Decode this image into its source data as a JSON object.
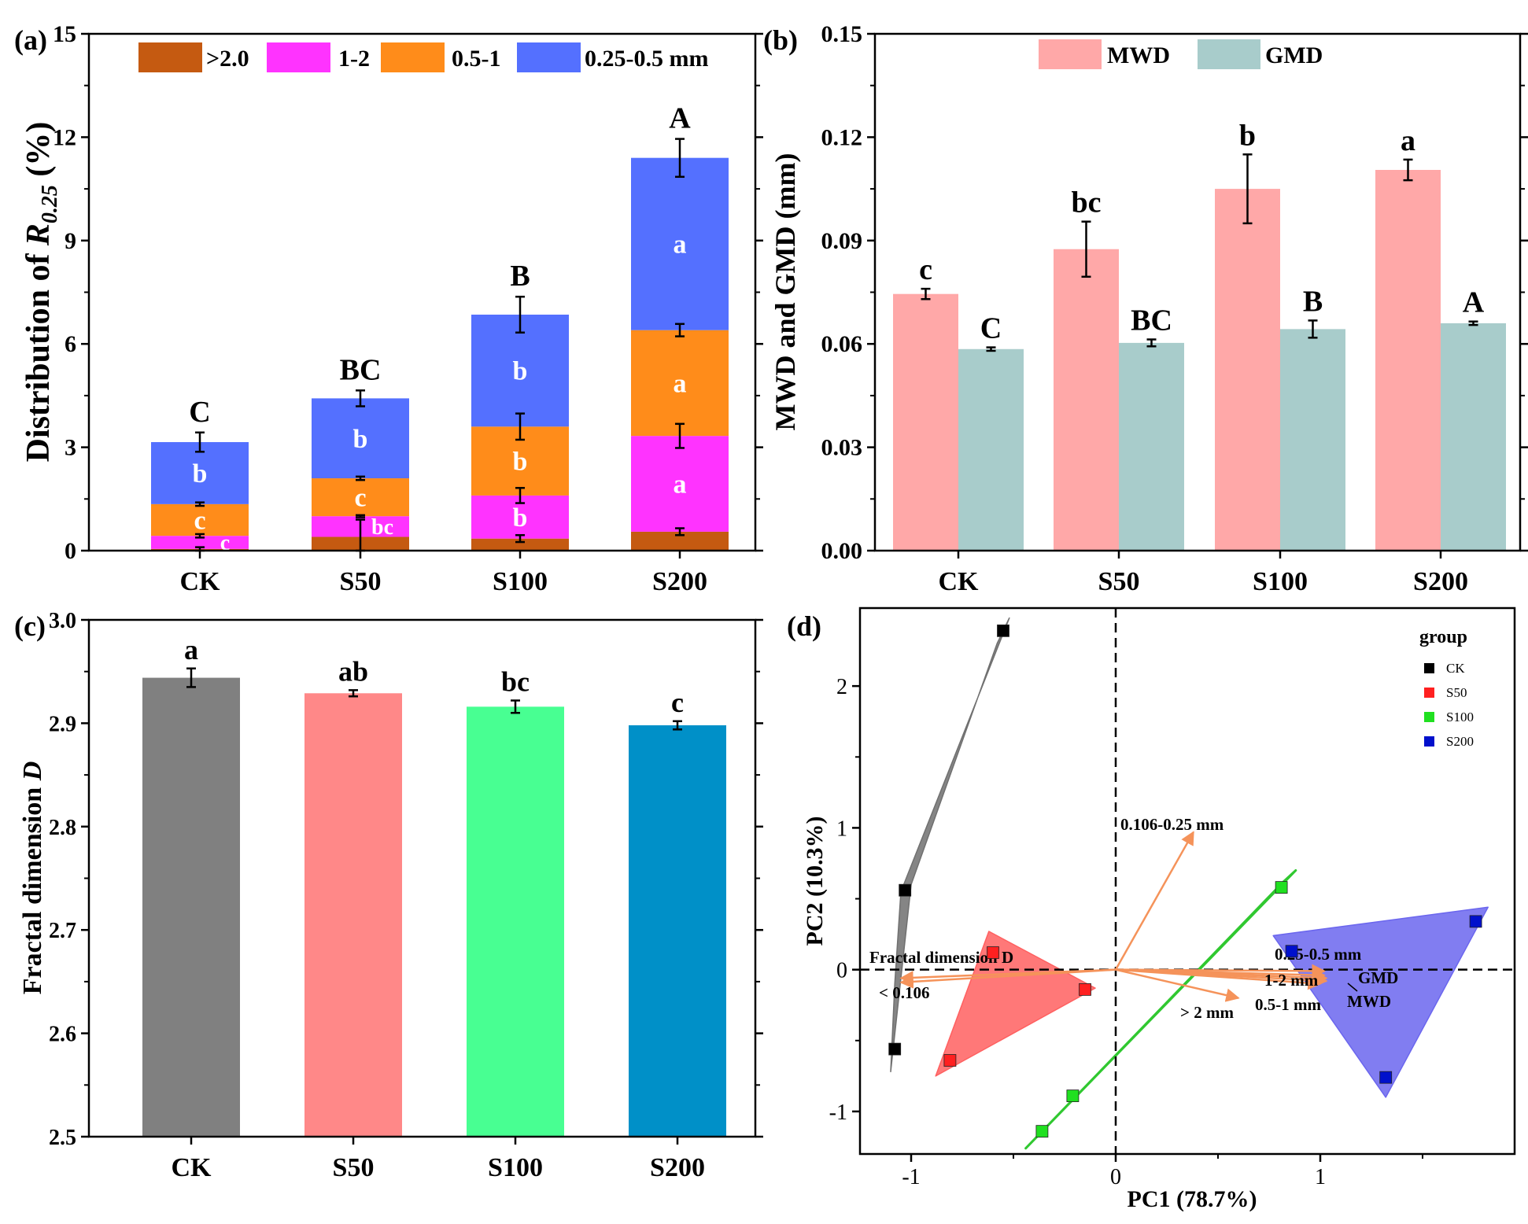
{
  "figure": {
    "panels": [
      "(a)",
      "(b)",
      "(c)",
      "(d)"
    ]
  },
  "colors": {
    "gt2": "#c55a11",
    "p1_2": "#ff33ff",
    "p05_1": "#ff8c1a",
    "p025_05": "#5470ff",
    "MWD": "#ffa8a8",
    "GMD": "#a8cccb",
    "CK_bar": "#808080",
    "S50_bar": "#ff8888",
    "S100_bar": "#48ff92",
    "S200_bar": "#0090c8",
    "CK": "#000000",
    "S50": "#ff2020",
    "S100": "#20e020",
    "S200": "#0010cc",
    "hullCK": "#707070",
    "hullS50": "#ff6060",
    "hullS100": "#30c830",
    "hullS200": "#6b66ee",
    "arrow": "#f5935a"
  },
  "chart_data": [
    {
      "panel": "(a)",
      "type": "bar",
      "stacked": true,
      "categories": [
        "CK",
        "S50",
        "S100",
        "S200"
      ],
      "ylabel_main": "Distribution of ",
      "ylabel_var": "R",
      "ylabel_sub": "0.25",
      "ylabel_unit": " (%)",
      "ylim": [
        0,
        15
      ],
      "yticks": [
        "0",
        "3",
        "6",
        "9",
        "12",
        "15"
      ],
      "ytick_values": [
        0,
        3,
        6,
        9,
        12,
        15
      ],
      "series": [
        {
          "name": ">2.0",
          "color_key": "gt2",
          "values": [
            0.05,
            0.4,
            0.35,
            0.55
          ],
          "errors": [
            0.05,
            0.5,
            0.1,
            0.1
          ],
          "letters": [
            "",
            "",
            "",
            ""
          ]
        },
        {
          "name": "1-2",
          "color_key": "p1_2",
          "values": [
            0.38,
            0.6,
            1.25,
            2.78
          ],
          "errors": [
            0.05,
            0.03,
            0.22,
            0.35
          ],
          "letters": [
            "c",
            "bc",
            "b",
            "a"
          ]
        },
        {
          "name": "0.5-1",
          "color_key": "p05_1",
          "values": [
            0.92,
            1.1,
            2.0,
            3.07
          ],
          "errors": [
            0.05,
            0.05,
            0.38,
            0.18
          ],
          "letters": [
            "c",
            "c",
            "b",
            "a"
          ]
        },
        {
          "name": "0.25-0.5  mm",
          "color_key": "p025_05",
          "values": [
            1.8,
            2.32,
            3.25,
            5.0
          ],
          "errors": [
            0.28,
            0.23,
            0.52,
            0.55
          ],
          "letters": [
            "b",
            "b",
            "b",
            "a"
          ]
        }
      ],
      "totals": [
        3.15,
        4.42,
        6.85,
        11.4
      ],
      "total_letters": [
        "C",
        "BC",
        "B",
        "A"
      ]
    },
    {
      "panel": "(b)",
      "type": "bar",
      "categories": [
        "CK",
        "S50",
        "S100",
        "S200"
      ],
      "ylabel": "MWD and GMD (mm)",
      "ylim": [
        0,
        0.15
      ],
      "yticks": [
        "0.00",
        "0.03",
        "0.06",
        "0.09",
        "0.12",
        "0.15"
      ],
      "ytick_values": [
        0,
        0.03,
        0.06,
        0.09,
        0.12,
        0.15
      ],
      "series": [
        {
          "name": "MWD",
          "color_key": "MWD",
          "values": [
            0.0745,
            0.0875,
            0.105,
            0.1105
          ],
          "errors": [
            0.0015,
            0.008,
            0.01,
            0.003
          ],
          "letters": [
            "c",
            "bc",
            "b",
            "a"
          ]
        },
        {
          "name": "GMD",
          "color_key": "GMD",
          "values": [
            0.0585,
            0.0603,
            0.0643,
            0.066
          ],
          "errors": [
            0.0005,
            0.001,
            0.0025,
            0.0005
          ],
          "letters": [
            "C",
            "BC",
            "B",
            "A"
          ]
        }
      ]
    },
    {
      "panel": "(c)",
      "type": "bar",
      "categories": [
        "CK",
        "S50",
        "S100",
        "S200"
      ],
      "ylabel_main": "Fractal dimension ",
      "ylabel_var": "D",
      "ylim": [
        2.5,
        3.0
      ],
      "yticks": [
        "2.5",
        "2.6",
        "2.7",
        "2.8",
        "2.9",
        "3.0"
      ],
      "ytick_values": [
        2.5,
        2.6,
        2.7,
        2.8,
        2.9,
        3.0
      ],
      "values": [
        2.944,
        2.929,
        2.916,
        2.898
      ],
      "errors": [
        0.009,
        0.003,
        0.006,
        0.004
      ],
      "letters": [
        "a",
        "ab",
        "bc",
        "c"
      ],
      "color_keys": [
        "CK_bar",
        "S50_bar",
        "S100_bar",
        "S200_bar"
      ]
    },
    {
      "panel": "(d)",
      "type": "scatter",
      "xlabel": "PC1 (78.7%)",
      "ylabel": "PC2 (10.3%)",
      "xlim": [
        -1.25,
        1.95
      ],
      "ylim": [
        -1.3,
        2.55
      ],
      "xticks": [
        "-1",
        "0",
        "1"
      ],
      "xtick_values": [
        -1,
        0,
        1
      ],
      "yticks": [
        "-1",
        "0",
        "1",
        "2"
      ],
      "ytick_values": [
        -1,
        0,
        1,
        2
      ],
      "legend_title": "group",
      "groups": [
        {
          "name": "CK",
          "color_key": "CK",
          "hull_key": "hullCK",
          "points": [
            [
              -0.55,
              2.39
            ],
            [
              -1.03,
              0.56
            ],
            [
              -1.08,
              -0.56
            ]
          ],
          "hull": [
            [
              -0.52,
              2.48
            ],
            [
              -0.58,
              2.3
            ],
            [
              -1.0,
              0.6
            ],
            [
              -1.1,
              -0.72
            ],
            [
              -1.08,
              -0.1
            ],
            [
              -1.05,
              0.55
            ]
          ]
        },
        {
          "name": "S50",
          "color_key": "S50",
          "hull_key": "hullS50",
          "points": [
            [
              -0.6,
              0.12
            ],
            [
              -0.81,
              -0.64
            ],
            [
              -0.15,
              -0.14
            ]
          ],
          "hull": [
            [
              -0.62,
              0.27
            ],
            [
              -0.1,
              -0.13
            ],
            [
              -0.88,
              -0.75
            ]
          ]
        },
        {
          "name": "S100",
          "color_key": "S100",
          "hull_key": "hullS100",
          "points": [
            [
              0.81,
              0.58
            ],
            [
              -0.21,
              -0.89
            ],
            [
              -0.36,
              -1.14
            ]
          ],
          "hull": [
            [
              0.88,
              0.7
            ],
            [
              -0.44,
              -1.26
            ],
            [
              0.82,
              0.62
            ]
          ]
        },
        {
          "name": "S200",
          "color_key": "S200",
          "hull_key": "hullS200",
          "points": [
            [
              1.76,
              0.34
            ],
            [
              0.86,
              0.13
            ],
            [
              1.32,
              -0.76
            ]
          ],
          "hull": [
            [
              1.82,
              0.44
            ],
            [
              0.77,
              0.24
            ],
            [
              1.32,
              -0.9
            ]
          ]
        }
      ],
      "loadings": [
        {
          "name": "0.106-0.25 mm",
          "end": [
            0.38,
            0.97
          ]
        },
        {
          "name": "Fractal dimension D",
          "end": [
            -1.05,
            -0.06
          ]
        },
        {
          "name": "< 0.106",
          "end": [
            -1.05,
            -0.09
          ]
        },
        {
          "name": "> 2 mm",
          "end": [
            0.6,
            -0.2
          ]
        },
        {
          "name": "0.25-0.5 mm",
          "end": [
            1.02,
            -0.01
          ]
        },
        {
          "name": "1-2 mm",
          "end": [
            1.02,
            -0.04
          ]
        },
        {
          "name": "0.5-1 mm",
          "end": [
            1.0,
            -0.1
          ]
        },
        {
          "name": "GMD",
          "end": [
            1.03,
            -0.06
          ]
        },
        {
          "name": "MWD",
          "end": [
            1.03,
            -0.08
          ]
        }
      ]
    }
  ]
}
